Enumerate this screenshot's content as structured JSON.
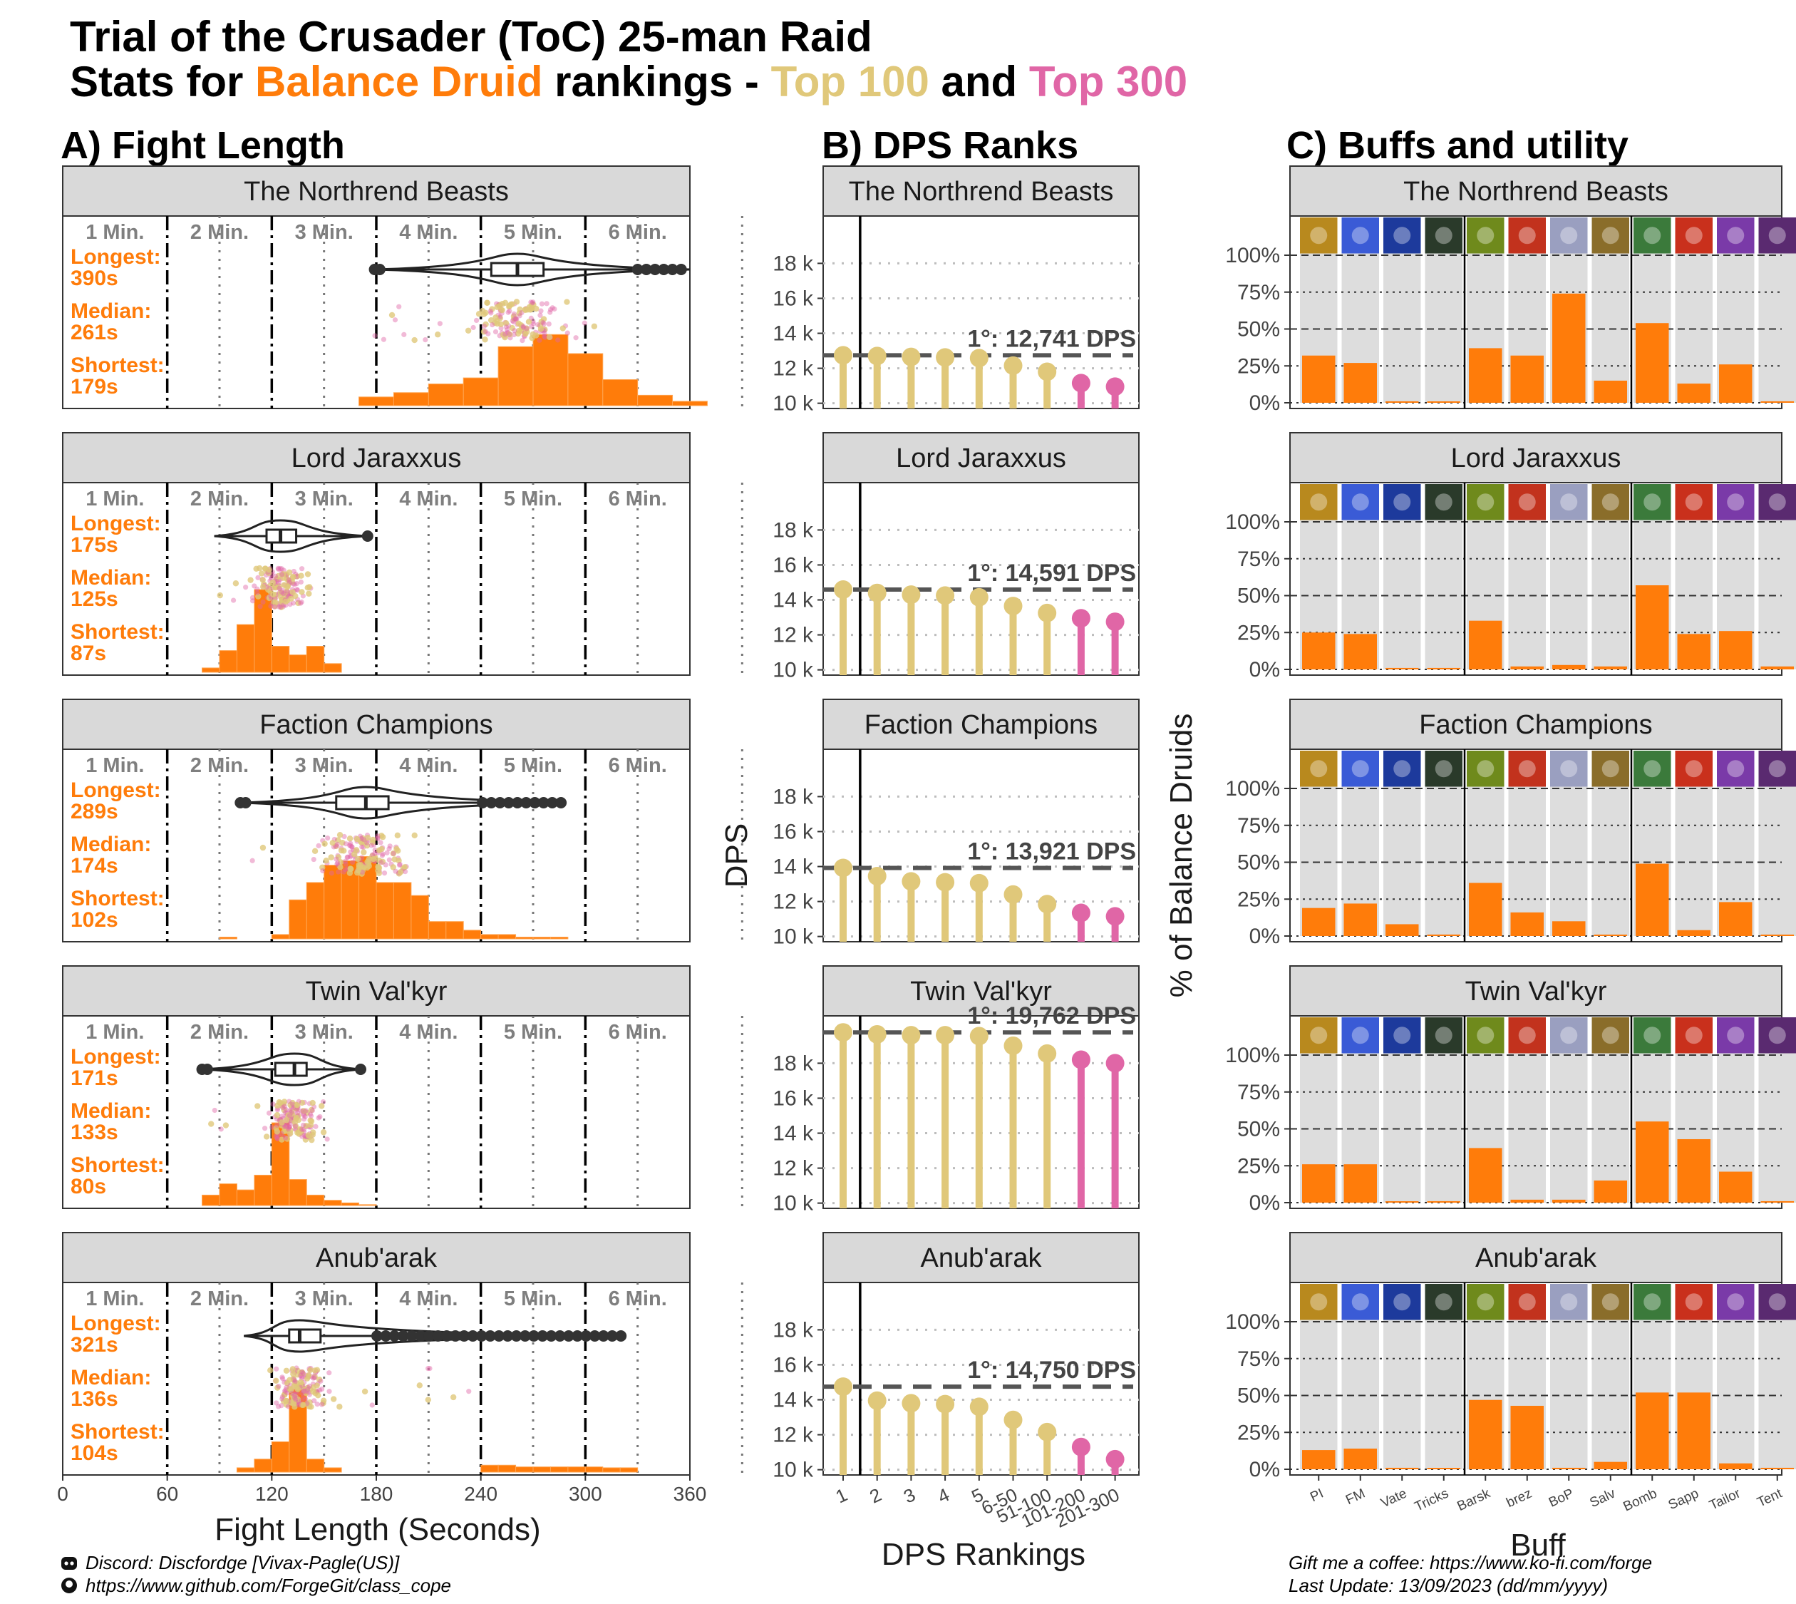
{
  "title": {
    "line1": "Trial of the Crusader (ToC) 25-man Raid",
    "line2_prefix": "Stats for ",
    "line2_class": "Balance Druid",
    "line2_mid": " rankings - ",
    "line2_top100": "Top 100",
    "line2_and": " and ",
    "line2_top300": "Top 300"
  },
  "colors": {
    "class": "#ff7c0a",
    "top100": "#e0c87a",
    "top300": "#e066a6",
    "strip": "#d9d9d9",
    "bar_bg": "#dddddd",
    "text": "#1a1a1a",
    "muted": "#7f7f7f"
  },
  "panels": {
    "a_title": "A) Fight Length",
    "b_title": "B) DPS Ranks",
    "c_title": "C) Buffs and utility"
  },
  "fight_length": {
    "minute_labels": [
      "1 Min.",
      "2 Min.",
      "3 Min.",
      "4 Min.",
      "5 Min.",
      "6 Min."
    ],
    "x_ticks": [
      "0",
      "60",
      "120",
      "180",
      "240",
      "300",
      "360"
    ],
    "xlabel": "Fight Length (Seconds)",
    "stat_labels": {
      "longest": "Longest:",
      "median": "Median:",
      "shortest": "Shortest:"
    }
  },
  "dps_ranks": {
    "ylabel": "DPS",
    "xlabel": "DPS Rankings",
    "y_ticks": [
      "10 k",
      "12 k",
      "14 k",
      "16 k",
      "18 k"
    ],
    "ylim": [
      10000,
      20200
    ],
    "x_categories": [
      "1",
      "2",
      "3",
      "4",
      "5",
      "6-50",
      "51-100",
      "101-200",
      "201-300"
    ],
    "top_prefix": "1°: "
  },
  "buffs": {
    "ylabel": "% of Balance Druids",
    "xlabel": "Buff",
    "y_ticks": [
      "0%",
      "25%",
      "50%",
      "75%",
      "100%"
    ],
    "names": [
      "PI",
      "FM",
      "Vate",
      "Tricks",
      "Barsk",
      "brez",
      "BoP",
      "Salv",
      "Bomb",
      "Sapp",
      "Tailor",
      "Tent"
    ],
    "icons": [
      "power-infusion-icon",
      "focus-magic-icon",
      "innervate-icon",
      "tricks-icon",
      "barkskin-icon",
      "battle-res-icon",
      "blessing-of-protection-icon",
      "salvation-icon",
      "bomb-icon",
      "sapper-icon",
      "tailoring-icon",
      "tentacle-icon"
    ]
  },
  "chart_data": [
    {
      "type": "histogram",
      "name": "Fight length distribution",
      "xlim": [
        0,
        360
      ],
      "bosses": [
        {
          "boss": "The Northrend Beasts",
          "longest": "390s",
          "median": "261s",
          "shortest": "179s",
          "longest_s": 390,
          "median_s": 261,
          "shortest_s": 179,
          "q1_s": 246,
          "q3_s": 276,
          "hist_start": 170,
          "hist_width": 20,
          "hist_counts": [
            0.1,
            0.15,
            0.25,
            0.32,
            0.68,
            0.82,
            0.6,
            0.3,
            0.12,
            0.05
          ]
        },
        {
          "boss": "Lord Jaraxxus",
          "longest": "175s",
          "median": "125s",
          "shortest": "87s",
          "longest_s": 175,
          "median_s": 125,
          "shortest_s": 87,
          "q1_s": 117,
          "q3_s": 134,
          "hist_start": 80,
          "hist_width": 10,
          "hist_counts": [
            0.05,
            0.25,
            0.55,
            0.98,
            0.3,
            0.2,
            0.3,
            0.1
          ]
        },
        {
          "boss": "Faction Champions",
          "longest": "289s",
          "median": "174s",
          "shortest": "102s",
          "longest_s": 289,
          "median_s": 174,
          "shortest_s": 102,
          "q1_s": 157,
          "q3_s": 187,
          "hist_start": 90,
          "hist_width": 10,
          "hist_counts": [
            0.02,
            0,
            0,
            0.05,
            0.45,
            0.65,
            0.85,
            0.9,
            0.95,
            0.65,
            0.65,
            0.5,
            0.2,
            0.2,
            0.1,
            0.05,
            0.05,
            0.02,
            0.02,
            0.02
          ]
        },
        {
          "boss": "Twin Val'kyr",
          "longest": "171s",
          "median": "133s",
          "shortest": "80s",
          "longest_s": 171,
          "median_s": 133,
          "shortest_s": 80,
          "q1_s": 122,
          "q3_s": 140,
          "hist_start": 80,
          "hist_width": 10,
          "hist_counts": [
            0.12,
            0.25,
            0.18,
            0.35,
            0.96,
            0.3,
            0.12,
            0.06,
            0.03,
            0.01
          ]
        },
        {
          "boss": "Anub'arak",
          "longest": "321s",
          "median": "136s",
          "shortest": "104s",
          "longest_s": 321,
          "median_s": 136,
          "shortest_s": 104,
          "q1_s": 130,
          "q3_s": 148,
          "hist_start": 100,
          "hist_width": 10,
          "hist_counts": [
            0.05,
            0.15,
            0.35,
            0.96,
            0.15,
            0.05,
            0,
            0,
            0,
            0,
            0,
            0,
            0,
            0,
            0.08,
            0.08,
            0.06,
            0.06,
            0.06,
            0.06,
            0.06,
            0.05,
            0.05
          ]
        }
      ]
    },
    {
      "type": "lollipop",
      "name": "DPS by ranking bracket",
      "categories": [
        "1",
        "2",
        "3",
        "4",
        "5",
        "6-50",
        "51-100",
        "101-200",
        "201-300"
      ],
      "series": [
        {
          "name": "The Northrend Beasts",
          "top_label": "12,741 DPS",
          "top": 12741,
          "values": [
            12741,
            12700,
            12650,
            12620,
            12580,
            12150,
            11800,
            11150,
            10950
          ]
        },
        {
          "name": "Lord Jaraxxus",
          "top_label": "14,591 DPS",
          "top": 14591,
          "values": [
            14591,
            14400,
            14300,
            14250,
            14150,
            13650,
            13250,
            12950,
            12750
          ]
        },
        {
          "name": "Faction Champions",
          "top_label": "13,921 DPS",
          "top": 13921,
          "values": [
            13921,
            13450,
            13150,
            13100,
            13050,
            12400,
            11850,
            11350,
            11150
          ]
        },
        {
          "name": "Twin Val'kyr",
          "top_label": "19,762 DPS",
          "top": 19762,
          "values": [
            19762,
            19650,
            19600,
            19600,
            19550,
            19000,
            18550,
            18200,
            18000
          ]
        },
        {
          "name": "Anub'arak",
          "top_label": "14,750 DPS",
          "top": 14750,
          "values": [
            14750,
            13950,
            13800,
            13750,
            13600,
            12850,
            12150,
            11300,
            10600
          ]
        }
      ]
    },
    {
      "type": "bar",
      "name": "Buffs and utility (% of Balance Druids)",
      "categories": [
        "PI",
        "FM",
        "Vate",
        "Tricks",
        "Barsk",
        "brez",
        "BoP",
        "Salv",
        "Bomb",
        "Sapp",
        "Tailor",
        "Tent"
      ],
      "ylim": [
        0,
        100
      ],
      "series": [
        {
          "name": "The Northrend Beasts",
          "values": [
            32,
            27,
            1,
            0,
            37,
            32,
            74,
            15,
            54,
            13,
            26,
            1
          ]
        },
        {
          "name": "Lord Jaraxxus",
          "values": [
            25,
            24,
            1,
            1,
            33,
            2,
            3,
            2,
            57,
            24,
            26,
            2
          ]
        },
        {
          "name": "Faction Champions",
          "values": [
            19,
            22,
            8,
            1,
            36,
            16,
            10,
            0,
            49,
            4,
            23,
            0
          ]
        },
        {
          "name": "Twin Val'kyr",
          "values": [
            26,
            26,
            0,
            1,
            37,
            2,
            2,
            15,
            55,
            43,
            21,
            1
          ]
        },
        {
          "name": "Anub'arak",
          "values": [
            13,
            14,
            1,
            0,
            47,
            43,
            1,
            5,
            52,
            52,
            4,
            1
          ]
        }
      ]
    }
  ],
  "footer": {
    "discord": "Discord: Discfordge [Vivax-Pagle(US)]",
    "github": "https://www.github.com/ForgeGit/class_cope",
    "kofi": "Gift me a coffee: https://www.ko-fi.com/forge",
    "update": "Last Update: 13/09/2023 (dd/mm/yyyy)"
  }
}
